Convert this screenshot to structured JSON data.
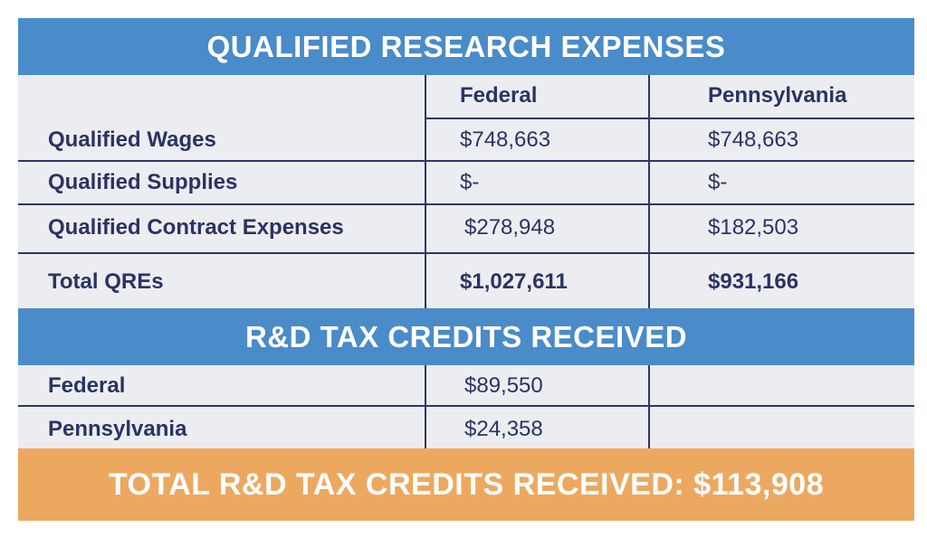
{
  "qre": {
    "title": "QUALIFIED RESEARCH EXPENSES",
    "columns": [
      "Federal",
      "Pennsylvania"
    ],
    "rows": [
      {
        "label": "Qualified Wages",
        "federal": "$748,663",
        "pennsylvania": "$748,663"
      },
      {
        "label": "Qualified Supplies",
        "federal": "$-",
        "pennsylvania": "$-"
      },
      {
        "label": "Qualified Contract Expenses",
        "federal": "$278,948",
        "pennsylvania": "$182,503"
      },
      {
        "label": "Total QREs",
        "federal": "$1,027,611",
        "pennsylvania": "$931,166"
      }
    ]
  },
  "credits": {
    "title": "R&D TAX CREDITS RECEIVED",
    "rows": [
      {
        "label": "Federal",
        "value": "$89,550"
      },
      {
        "label": "Pennsylvania",
        "value": "$24,358"
      }
    ]
  },
  "total": {
    "text": "TOTAL R&D TAX CREDITS RECEIVED: $113,908"
  },
  "colors": {
    "blue_band": "#4a8bc9",
    "orange_band": "#eda860",
    "text": "#2b3363",
    "grid": "#2d3769",
    "cell_bg": "#ecedf0"
  }
}
